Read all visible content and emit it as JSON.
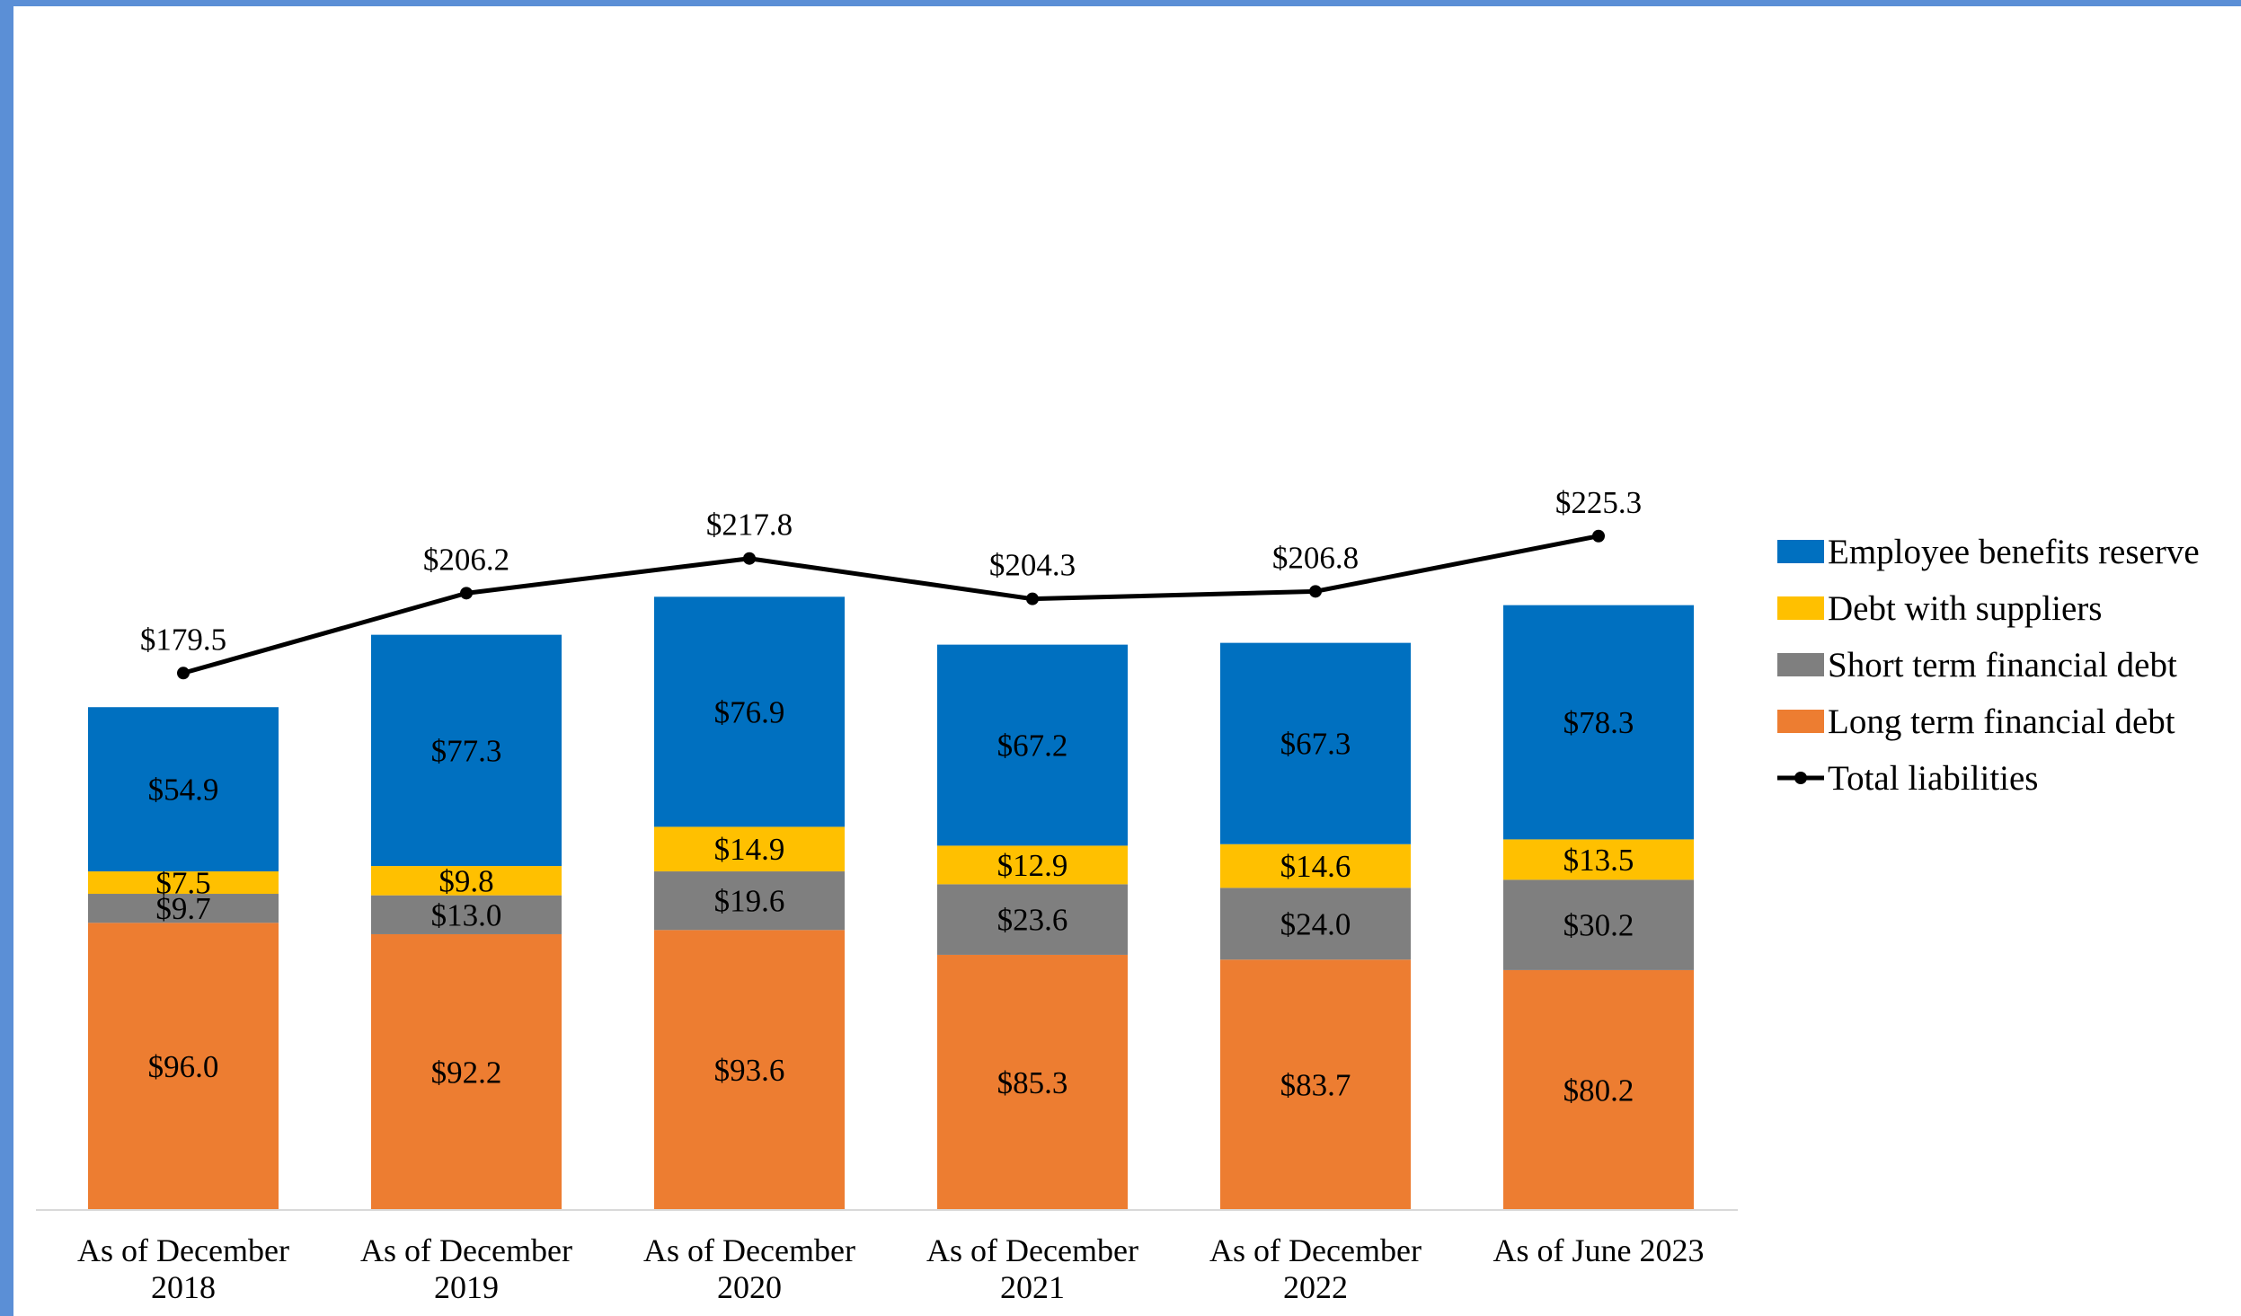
{
  "chart_data": {
    "type": "bar",
    "stacked": true,
    "categories": [
      [
        "As of December",
        "2018"
      ],
      [
        "As of December",
        "2019"
      ],
      [
        "As of December",
        "2020"
      ],
      [
        "As of December",
        "2021"
      ],
      [
        "As of December",
        "2022"
      ],
      [
        "As of June 2023"
      ]
    ],
    "series": [
      {
        "name": "Long term financial debt",
        "color": "#ed7d31",
        "values": [
          96.0,
          92.2,
          93.6,
          85.3,
          83.7,
          80.2
        ],
        "labels": [
          "$96.0",
          "$92.2",
          "$93.6",
          "$85.3",
          "$83.7",
          "$80.2"
        ]
      },
      {
        "name": "Short term financial debt",
        "color": "#7f7f7f",
        "values": [
          9.7,
          13.0,
          19.6,
          23.6,
          24.0,
          30.2
        ],
        "labels": [
          "$9.7",
          "$13.0",
          "$19.6",
          "$23.6",
          "$24.0",
          "$30.2"
        ]
      },
      {
        "name": "Debt with suppliers",
        "color": "#ffc000",
        "values": [
          7.5,
          9.8,
          14.9,
          12.9,
          14.6,
          13.5
        ],
        "labels": [
          "$7.5",
          "$9.8",
          "$14.9",
          "$12.9",
          "$14.6",
          "$13.5"
        ]
      },
      {
        "name": "Employee benefits reserve",
        "color": "#0070c0",
        "values": [
          54.9,
          77.3,
          76.9,
          67.2,
          67.3,
          78.3
        ],
        "labels": [
          "$54.9",
          "$77.3",
          "$76.9",
          "$67.2",
          "$67.3",
          "$78.3"
        ]
      }
    ],
    "line_series": {
      "name": "Total liabilities",
      "color": "#000000",
      "values": [
        179.5,
        206.2,
        217.8,
        204.3,
        206.8,
        225.3
      ],
      "labels": [
        "$179.5",
        "$206.2",
        "$217.8",
        "$204.3",
        "$206.8",
        "$225.3"
      ]
    },
    "legend_order": [
      "Employee benefits reserve",
      "Debt with suppliers",
      "Short term financial debt",
      "Long term financial debt",
      "Total liabilities"
    ],
    "legend_position": "right",
    "ylim": [
      0,
      240
    ],
    "grid": false,
    "frame_color": "#5b8fd6"
  }
}
